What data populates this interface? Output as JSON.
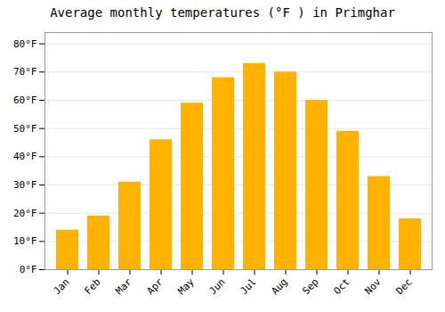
{
  "chart_data": {
    "type": "bar",
    "title": "Average monthly temperatures (°F ) in Primghar",
    "categories": [
      "Jan",
      "Feb",
      "Mar",
      "Apr",
      "May",
      "Jun",
      "Jul",
      "Aug",
      "Sep",
      "Oct",
      "Nov",
      "Dec"
    ],
    "values": [
      14,
      19,
      31,
      46,
      59,
      68,
      73,
      70,
      60,
      49,
      33,
      18
    ],
    "color": "#FFB300",
    "ylim": [
      0,
      84
    ],
    "yticks": [
      {
        "value": 0,
        "label": "0°F"
      },
      {
        "value": 10,
        "label": "10°F"
      },
      {
        "value": 20,
        "label": "20°F"
      },
      {
        "value": 30,
        "label": "30°F"
      },
      {
        "value": 40,
        "label": "40°F"
      },
      {
        "value": 50,
        "label": "50°F"
      },
      {
        "value": 60,
        "label": "60°F"
      },
      {
        "value": 70,
        "label": "70°F"
      },
      {
        "value": 80,
        "label": "80°F"
      }
    ],
    "grid": true
  }
}
